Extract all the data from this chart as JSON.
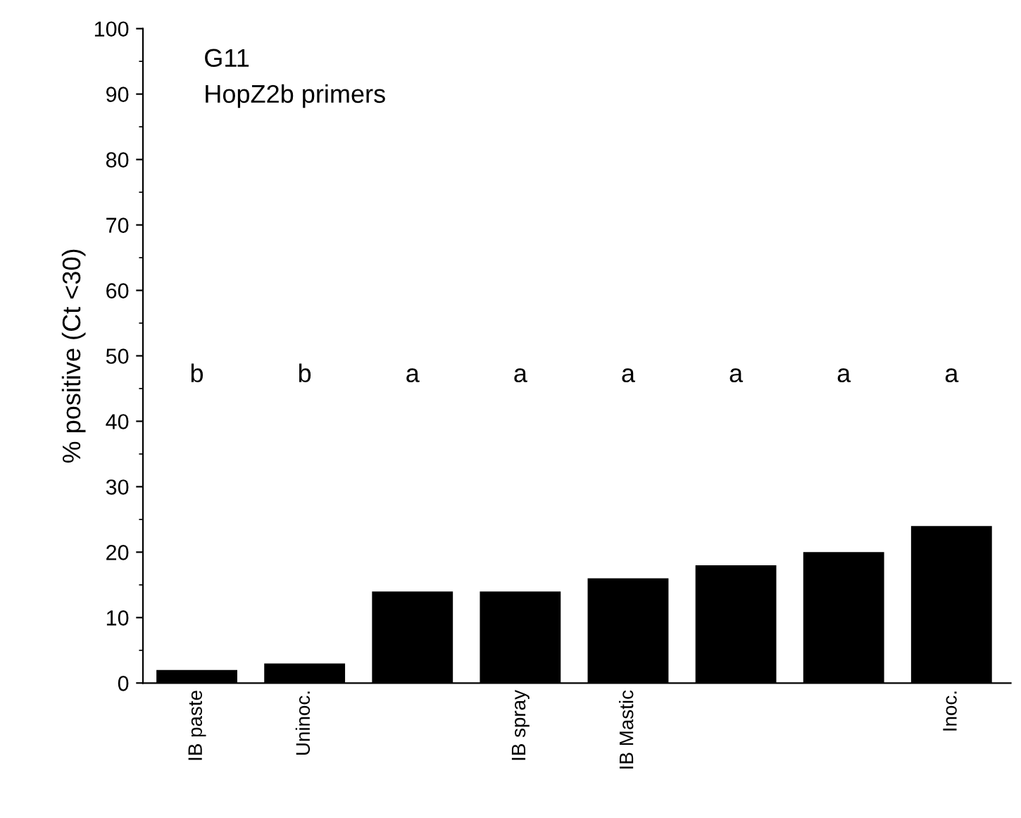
{
  "chart_data": {
    "type": "bar",
    "ylabel": "% positive (Ct <30)",
    "categories": [
      "IB paste",
      "Uninoc.",
      null,
      "IB spray",
      "IB Mastic",
      null,
      null,
      "Inoc."
    ],
    "values": [
      2,
      3,
      14,
      14,
      16,
      18,
      20,
      24
    ],
    "color": "#000000",
    "ylim": [
      0,
      100
    ],
    "yticks": [
      0,
      10,
      20,
      30,
      40,
      50,
      60,
      70,
      80,
      90,
      100
    ],
    "grid": false,
    "legend": false,
    "annotations": [
      "G11",
      "HopZ2b primers",
      "b",
      "b",
      "a",
      "a",
      "a",
      "a",
      "a",
      "a"
    ]
  }
}
